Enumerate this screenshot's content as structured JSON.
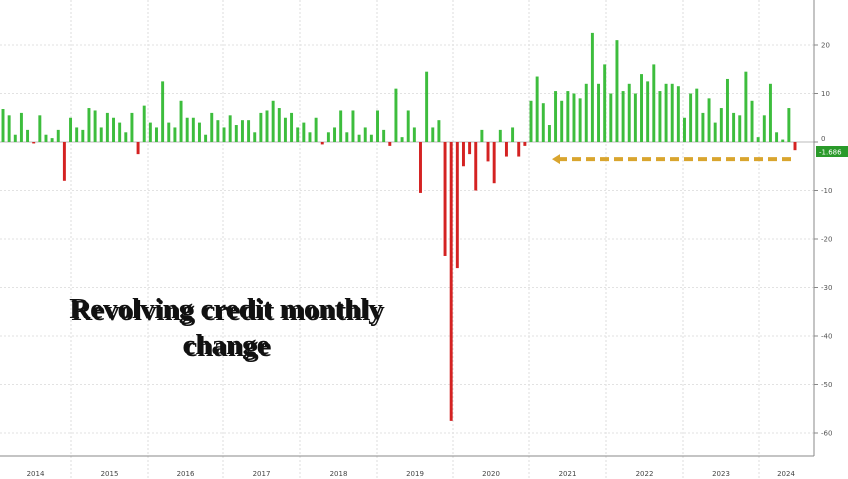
{
  "chart_data": {
    "type": "bar",
    "title_lines": [
      "Revolving credit monthly",
      "change"
    ],
    "ylim": [
      -63,
      30
    ],
    "y_ticks": [
      20,
      10,
      0,
      -10,
      -20,
      -30,
      -40,
      -50,
      -60
    ],
    "y_tick_labels": [
      "20",
      "10",
      "0",
      "-10",
      "-20",
      "-30",
      "-40",
      "-50",
      "-60"
    ],
    "x_labels": [
      "2014",
      "2015",
      "2016",
      "2017",
      "2018",
      "2019",
      "2020",
      "2021",
      "2022",
      "2023",
      "2024"
    ],
    "last_value_label": "-1.686",
    "last_value": -1.686,
    "grid": true,
    "colors": {
      "positive": "#3dbd3d",
      "negative": "#d42222",
      "reference_line": "#d9a52e",
      "marker": "#2a9a2a"
    },
    "series": [
      {
        "values": [
          6.8,
          5.5,
          1.5,
          6,
          2.5,
          -0.3,
          5.5,
          1.5,
          0.8,
          2.5,
          -8,
          5,
          3,
          2.5,
          7,
          6.5,
          3,
          6,
          5,
          4,
          2,
          6,
          -2.5,
          7.5,
          4,
          3,
          12.5,
          4,
          3,
          8.5,
          5,
          5,
          4,
          1.5,
          6,
          4.5,
          3,
          5.5,
          3.5,
          4.5,
          4.5,
          2,
          6,
          6.5,
          8.5,
          7,
          5,
          6,
          3,
          4,
          2,
          5,
          -0.5,
          2,
          3,
          6.5,
          2,
          6.5,
          1.5,
          3,
          1.5,
          6.5,
          2.5,
          -0.8,
          11,
          1,
          6.5,
          3,
          -10.5,
          14.5,
          3,
          4.5,
          -23.5,
          -57.5,
          -26,
          -5,
          -2.5,
          -10,
          2.5,
          -4,
          -8.5,
          2.5,
          -3,
          3,
          -3,
          -0.8,
          8.5,
          13.5,
          8,
          3.5,
          10.5,
          8.5,
          10.5,
          10,
          9,
          12,
          22.5,
          12,
          16,
          10,
          21,
          10.5,
          12,
          10,
          14,
          12.5,
          16,
          10.5,
          12,
          12,
          11.5,
          5,
          10,
          11,
          6,
          9,
          4,
          7,
          13,
          6,
          5.5,
          14.5,
          8.5,
          1,
          5.5,
          12,
          2,
          0.5,
          7,
          -1.686
        ]
      }
    ]
  }
}
